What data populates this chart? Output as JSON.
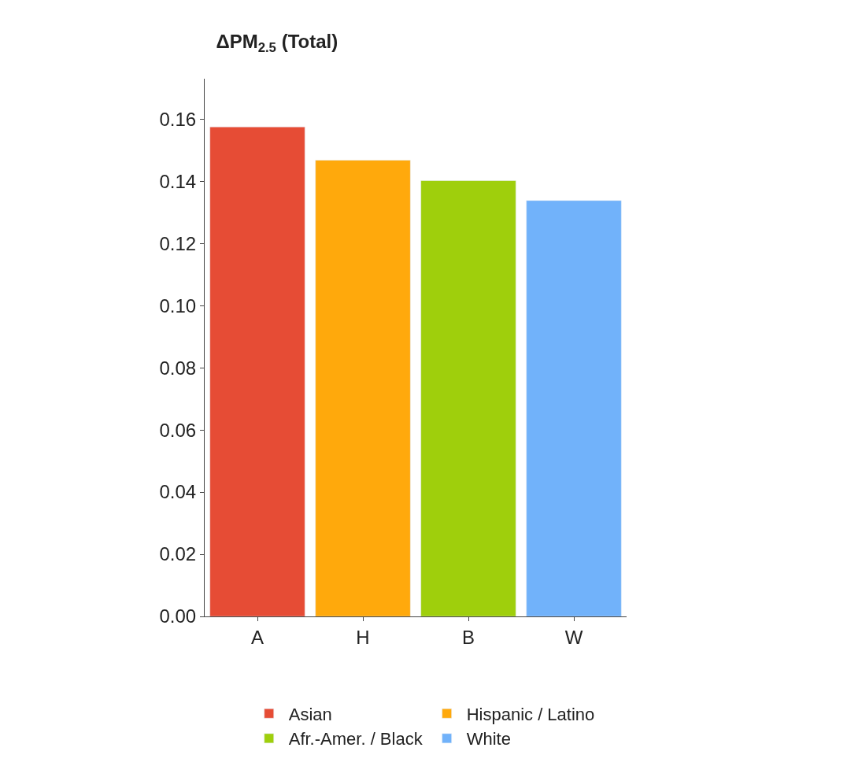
{
  "chart_data": {
    "type": "bar",
    "title": "ΔPM$_{2.5}$ (Total)",
    "categories": [
      "A",
      "H",
      "B",
      "W"
    ],
    "series": [
      {
        "name": "Asian",
        "color": "#e5432b",
        "values": [
          0.1575,
          null,
          null,
          null
        ]
      },
      {
        "name": "Hispanic / Latino",
        "color": "#ffa500",
        "values": [
          null,
          0.1468,
          null,
          null
        ]
      },
      {
        "name": "Afr.-Amer. / Black",
        "color": "#9acd00",
        "values": [
          null,
          null,
          0.1402,
          null
        ]
      },
      {
        "name": "White",
        "color": "#6aaefa",
        "values": [
          null,
          null,
          null,
          0.1338
        ]
      }
    ],
    "ylim": [
      0,
      0.173
    ],
    "yticks": [
      {
        "value": 0,
        "label": "0.00"
      },
      {
        "value": 0.02,
        "label": "0.02"
      },
      {
        "value": 0.04,
        "label": "0.04"
      },
      {
        "value": 0.06,
        "label": "0.06"
      },
      {
        "value": 0.08,
        "label": "0.08"
      },
      {
        "value": 0.1,
        "label": "0.10"
      },
      {
        "value": 0.12,
        "label": "0.12"
      },
      {
        "value": 0.14,
        "label": "0.14"
      },
      {
        "value": 0.16,
        "label": "0.16"
      }
    ],
    "legend": "bottom"
  }
}
